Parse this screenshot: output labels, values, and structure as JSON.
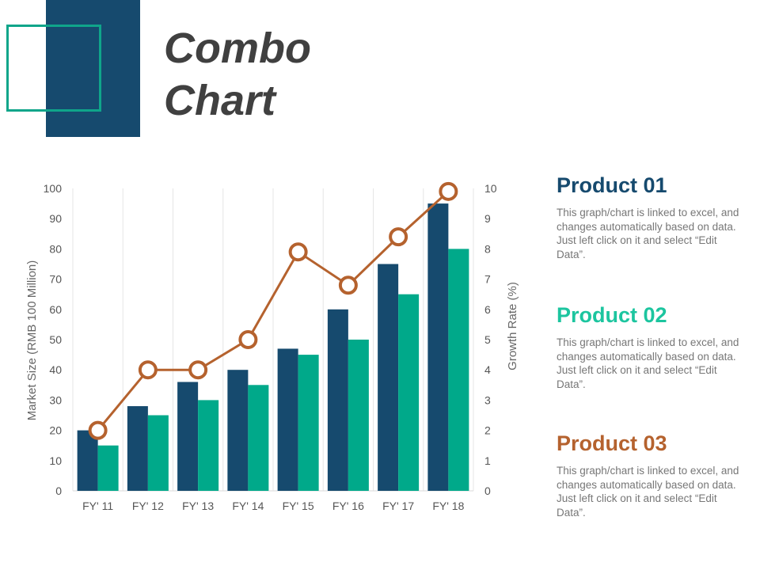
{
  "slide": {
    "title_line1": "Combo",
    "title_line2": "Chart"
  },
  "chart_data": {
    "type": "combo",
    "categories": [
      "FY' 11",
      "FY' 12",
      "FY' 13",
      "FY' 14",
      "FY' 15",
      "FY' 16",
      "FY' 17",
      "FY' 18"
    ],
    "series": [
      {
        "name": "Product 01",
        "kind": "bar",
        "axis": "left",
        "color": "#164a6e",
        "values": [
          20,
          28,
          36,
          40,
          47,
          60,
          75,
          95
        ]
      },
      {
        "name": "Product 02",
        "kind": "bar",
        "axis": "left",
        "color": "#00a98a",
        "values": [
          15,
          25,
          30,
          35,
          45,
          50,
          65,
          80
        ]
      },
      {
        "name": "Product 03",
        "kind": "line",
        "axis": "right",
        "color": "#b5622e",
        "values": [
          2,
          4,
          4,
          5,
          7.9,
          6.8,
          8.4,
          9.9
        ]
      }
    ],
    "ylabel": "Market Size (RMB 100 Million)",
    "y2label": "Growth Rate (%)",
    "ylim": [
      0,
      100
    ],
    "y2lim": [
      0,
      10
    ],
    "yticks": [
      "0",
      "10",
      "20",
      "30",
      "40",
      "50",
      "60",
      "70",
      "80",
      "90",
      "100"
    ],
    "y2ticks": [
      "0",
      "1",
      "2",
      "3",
      "4",
      "5",
      "6",
      "7",
      "8",
      "9",
      "10"
    ],
    "grid": "vertical",
    "legend": "right"
  },
  "products": [
    {
      "title": "Product 01",
      "color": "#164a6e",
      "text": "This graph/chart is linked to excel, and changes automatically based on data. Just left click on it and select “Edit Data”."
    },
    {
      "title": "Product 02",
      "color": "#1cc59f",
      "text": "This graph/chart is linked to excel, and changes automatically based on data. Just left click on it and select “Edit Data”."
    },
    {
      "title": "Product 03",
      "color": "#b5622e",
      "text": "This graph/chart is linked to excel, and changes automatically based on data. Just left click on it and select “Edit Data”."
    }
  ]
}
